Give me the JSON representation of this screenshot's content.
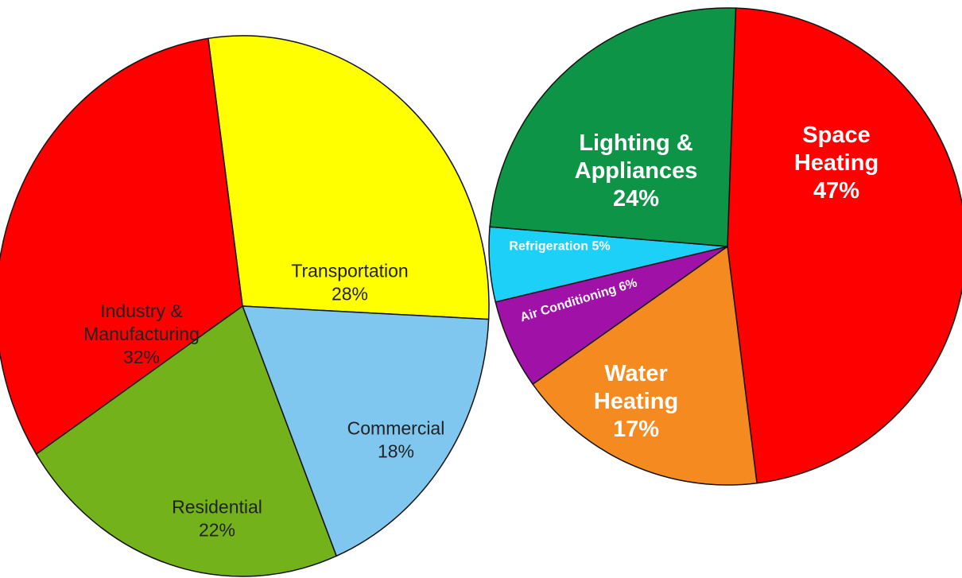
{
  "chart_data": [
    {
      "type": "pie",
      "categories": [
        "Transportation",
        "Commercial",
        "Residential",
        "Industry & Manufacturing"
      ],
      "values": [
        28,
        18,
        22,
        32
      ],
      "value_labels": [
        "28%",
        "18%",
        "22%",
        "32%"
      ],
      "colors": [
        "#ffff00",
        "#7fc7ef",
        "#73b21b",
        "#ff0000"
      ]
    },
    {
      "type": "pie",
      "categories": [
        "Space Heating",
        "Water Heating",
        "Air Conditioning",
        "Refrigeration",
        "Lighting & Appliances"
      ],
      "values": [
        47,
        17,
        6,
        5,
        24
      ],
      "value_labels": [
        "47%",
        "17%",
        "6%",
        "5%",
        "24%"
      ],
      "colors": [
        "#ff0000",
        "#f58b20",
        "#a011a8",
        "#1cd0f8",
        "#0e9447"
      ]
    }
  ]
}
